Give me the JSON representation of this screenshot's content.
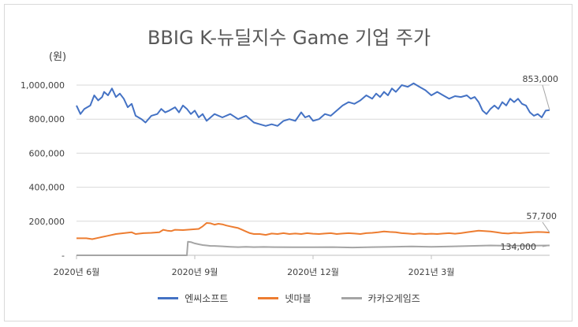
{
  "chart_data": {
    "type": "line",
    "title": "BBIG K-뉴딜지수 Game 기업 주가",
    "unit_label": "(원)",
    "ylim": [
      0,
      1000000
    ],
    "y_ticks": [
      0,
      200000,
      400000,
      600000,
      800000,
      1000000
    ],
    "y_tick_labels": [
      "-",
      "200,000",
      "400,000",
      "600,000",
      "800,000",
      "1,000,000"
    ],
    "x_tick_labels": [
      "2020년 6월",
      "2020년 9월",
      "2020년 12월",
      "2021년 3월"
    ],
    "x_tick_positions": [
      0,
      60,
      120,
      180
    ],
    "n_points": 241,
    "end_labels": {
      "엔씨소프트": "853,000",
      "넷마블": "134,000",
      "카카오게임즈": "57,700"
    },
    "series": [
      {
        "name": "엔씨소프트",
        "color": "#4472c4",
        "points": [
          [
            0,
            880000
          ],
          [
            2,
            830000
          ],
          [
            4,
            860000
          ],
          [
            7,
            880000
          ],
          [
            9,
            940000
          ],
          [
            11,
            910000
          ],
          [
            13,
            930000
          ],
          [
            14,
            960000
          ],
          [
            16,
            940000
          ],
          [
            18,
            980000
          ],
          [
            20,
            930000
          ],
          [
            22,
            950000
          ],
          [
            24,
            920000
          ],
          [
            26,
            870000
          ],
          [
            28,
            890000
          ],
          [
            30,
            820000
          ],
          [
            33,
            800000
          ],
          [
            35,
            780000
          ],
          [
            38,
            820000
          ],
          [
            41,
            830000
          ],
          [
            43,
            860000
          ],
          [
            45,
            840000
          ],
          [
            47,
            850000
          ],
          [
            50,
            870000
          ],
          [
            52,
            840000
          ],
          [
            54,
            880000
          ],
          [
            56,
            860000
          ],
          [
            58,
            830000
          ],
          [
            60,
            850000
          ],
          [
            62,
            810000
          ],
          [
            64,
            830000
          ],
          [
            66,
            790000
          ],
          [
            70,
            830000
          ],
          [
            74,
            810000
          ],
          [
            78,
            830000
          ],
          [
            82,
            800000
          ],
          [
            86,
            820000
          ],
          [
            90,
            780000
          ],
          [
            93,
            770000
          ],
          [
            96,
            760000
          ],
          [
            99,
            770000
          ],
          [
            102,
            760000
          ],
          [
            105,
            790000
          ],
          [
            108,
            800000
          ],
          [
            111,
            790000
          ],
          [
            114,
            840000
          ],
          [
            116,
            810000
          ],
          [
            118,
            820000
          ],
          [
            120,
            790000
          ],
          [
            123,
            800000
          ],
          [
            126,
            830000
          ],
          [
            129,
            820000
          ],
          [
            132,
            850000
          ],
          [
            135,
            880000
          ],
          [
            138,
            900000
          ],
          [
            141,
            890000
          ],
          [
            144,
            910000
          ],
          [
            147,
            940000
          ],
          [
            150,
            920000
          ],
          [
            152,
            950000
          ],
          [
            154,
            930000
          ],
          [
            156,
            960000
          ],
          [
            158,
            940000
          ],
          [
            160,
            980000
          ],
          [
            162,
            960000
          ],
          [
            165,
            1000000
          ],
          [
            168,
            990000
          ],
          [
            171,
            1010000
          ],
          [
            174,
            990000
          ],
          [
            177,
            970000
          ],
          [
            180,
            940000
          ],
          [
            183,
            960000
          ],
          [
            186,
            940000
          ],
          [
            189,
            920000
          ],
          [
            192,
            935000
          ],
          [
            195,
            930000
          ],
          [
            198,
            940000
          ],
          [
            200,
            920000
          ],
          [
            202,
            930000
          ],
          [
            204,
            900000
          ],
          [
            206,
            850000
          ],
          [
            208,
            830000
          ],
          [
            210,
            860000
          ],
          [
            212,
            880000
          ],
          [
            214,
            860000
          ],
          [
            216,
            900000
          ],
          [
            218,
            880000
          ],
          [
            220,
            920000
          ],
          [
            222,
            900000
          ],
          [
            224,
            920000
          ],
          [
            226,
            890000
          ],
          [
            228,
            880000
          ],
          [
            230,
            840000
          ],
          [
            232,
            820000
          ],
          [
            234,
            830000
          ],
          [
            236,
            810000
          ],
          [
            238,
            850000
          ],
          [
            240,
            853000
          ]
        ]
      },
      {
        "name": "넷마블",
        "color": "#ed7d31",
        "points": [
          [
            0,
            100000
          ],
          [
            5,
            100000
          ],
          [
            8,
            95000
          ],
          [
            12,
            105000
          ],
          [
            16,
            115000
          ],
          [
            20,
            125000
          ],
          [
            24,
            130000
          ],
          [
            28,
            135000
          ],
          [
            30,
            125000
          ],
          [
            34,
            130000
          ],
          [
            38,
            132000
          ],
          [
            42,
            135000
          ],
          [
            44,
            150000
          ],
          [
            46,
            145000
          ],
          [
            48,
            142000
          ],
          [
            50,
            150000
          ],
          [
            54,
            148000
          ],
          [
            58,
            152000
          ],
          [
            62,
            155000
          ],
          [
            64,
            170000
          ],
          [
            66,
            190000
          ],
          [
            68,
            188000
          ],
          [
            70,
            180000
          ],
          [
            72,
            185000
          ],
          [
            74,
            182000
          ],
          [
            76,
            175000
          ],
          [
            78,
            170000
          ],
          [
            80,
            165000
          ],
          [
            82,
            160000
          ],
          [
            84,
            150000
          ],
          [
            86,
            140000
          ],
          [
            88,
            130000
          ],
          [
            90,
            125000
          ],
          [
            93,
            125000
          ],
          [
            96,
            120000
          ],
          [
            99,
            128000
          ],
          [
            102,
            125000
          ],
          [
            105,
            130000
          ],
          [
            108,
            125000
          ],
          [
            111,
            128000
          ],
          [
            114,
            125000
          ],
          [
            117,
            130000
          ],
          [
            120,
            127000
          ],
          [
            123,
            125000
          ],
          [
            126,
            128000
          ],
          [
            129,
            130000
          ],
          [
            132,
            125000
          ],
          [
            135,
            128000
          ],
          [
            138,
            130000
          ],
          [
            141,
            128000
          ],
          [
            144,
            125000
          ],
          [
            147,
            130000
          ],
          [
            150,
            132000
          ],
          [
            153,
            135000
          ],
          [
            156,
            140000
          ],
          [
            159,
            137000
          ],
          [
            162,
            135000
          ],
          [
            165,
            130000
          ],
          [
            168,
            128000
          ],
          [
            171,
            125000
          ],
          [
            174,
            128000
          ],
          [
            177,
            125000
          ],
          [
            180,
            127000
          ],
          [
            183,
            125000
          ],
          [
            186,
            128000
          ],
          [
            189,
            130000
          ],
          [
            192,
            127000
          ],
          [
            195,
            130000
          ],
          [
            198,
            135000
          ],
          [
            201,
            140000
          ],
          [
            204,
            145000
          ],
          [
            207,
            142000
          ],
          [
            210,
            140000
          ],
          [
            213,
            135000
          ],
          [
            216,
            130000
          ],
          [
            219,
            128000
          ],
          [
            222,
            132000
          ],
          [
            225,
            130000
          ],
          [
            228,
            133000
          ],
          [
            231,
            135000
          ],
          [
            234,
            137000
          ],
          [
            237,
            136000
          ],
          [
            240,
            134000
          ]
        ]
      },
      {
        "name": "카카오게임즈",
        "color": "#a5a5a5",
        "points": [
          [
            0,
            0
          ],
          [
            10,
            0
          ],
          [
            20,
            0
          ],
          [
            30,
            0
          ],
          [
            40,
            0
          ],
          [
            50,
            0
          ],
          [
            56,
            0
          ],
          [
            56.5,
            80000
          ],
          [
            58,
            78000
          ],
          [
            60,
            70000
          ],
          [
            62,
            65000
          ],
          [
            64,
            60000
          ],
          [
            66,
            58000
          ],
          [
            68,
            55000
          ],
          [
            70,
            55000
          ],
          [
            74,
            53000
          ],
          [
            78,
            50000
          ],
          [
            82,
            48000
          ],
          [
            86,
            50000
          ],
          [
            90,
            48000
          ],
          [
            95,
            49000
          ],
          [
            100,
            48000
          ],
          [
            110,
            47000
          ],
          [
            120,
            47000
          ],
          [
            130,
            48000
          ],
          [
            140,
            46000
          ],
          [
            150,
            48000
          ],
          [
            160,
            50000
          ],
          [
            170,
            52000
          ],
          [
            180,
            50000
          ],
          [
            190,
            52000
          ],
          [
            200,
            55000
          ],
          [
            210,
            58000
          ],
          [
            220,
            56000
          ],
          [
            230,
            57000
          ],
          [
            240,
            57700
          ]
        ]
      }
    ]
  }
}
